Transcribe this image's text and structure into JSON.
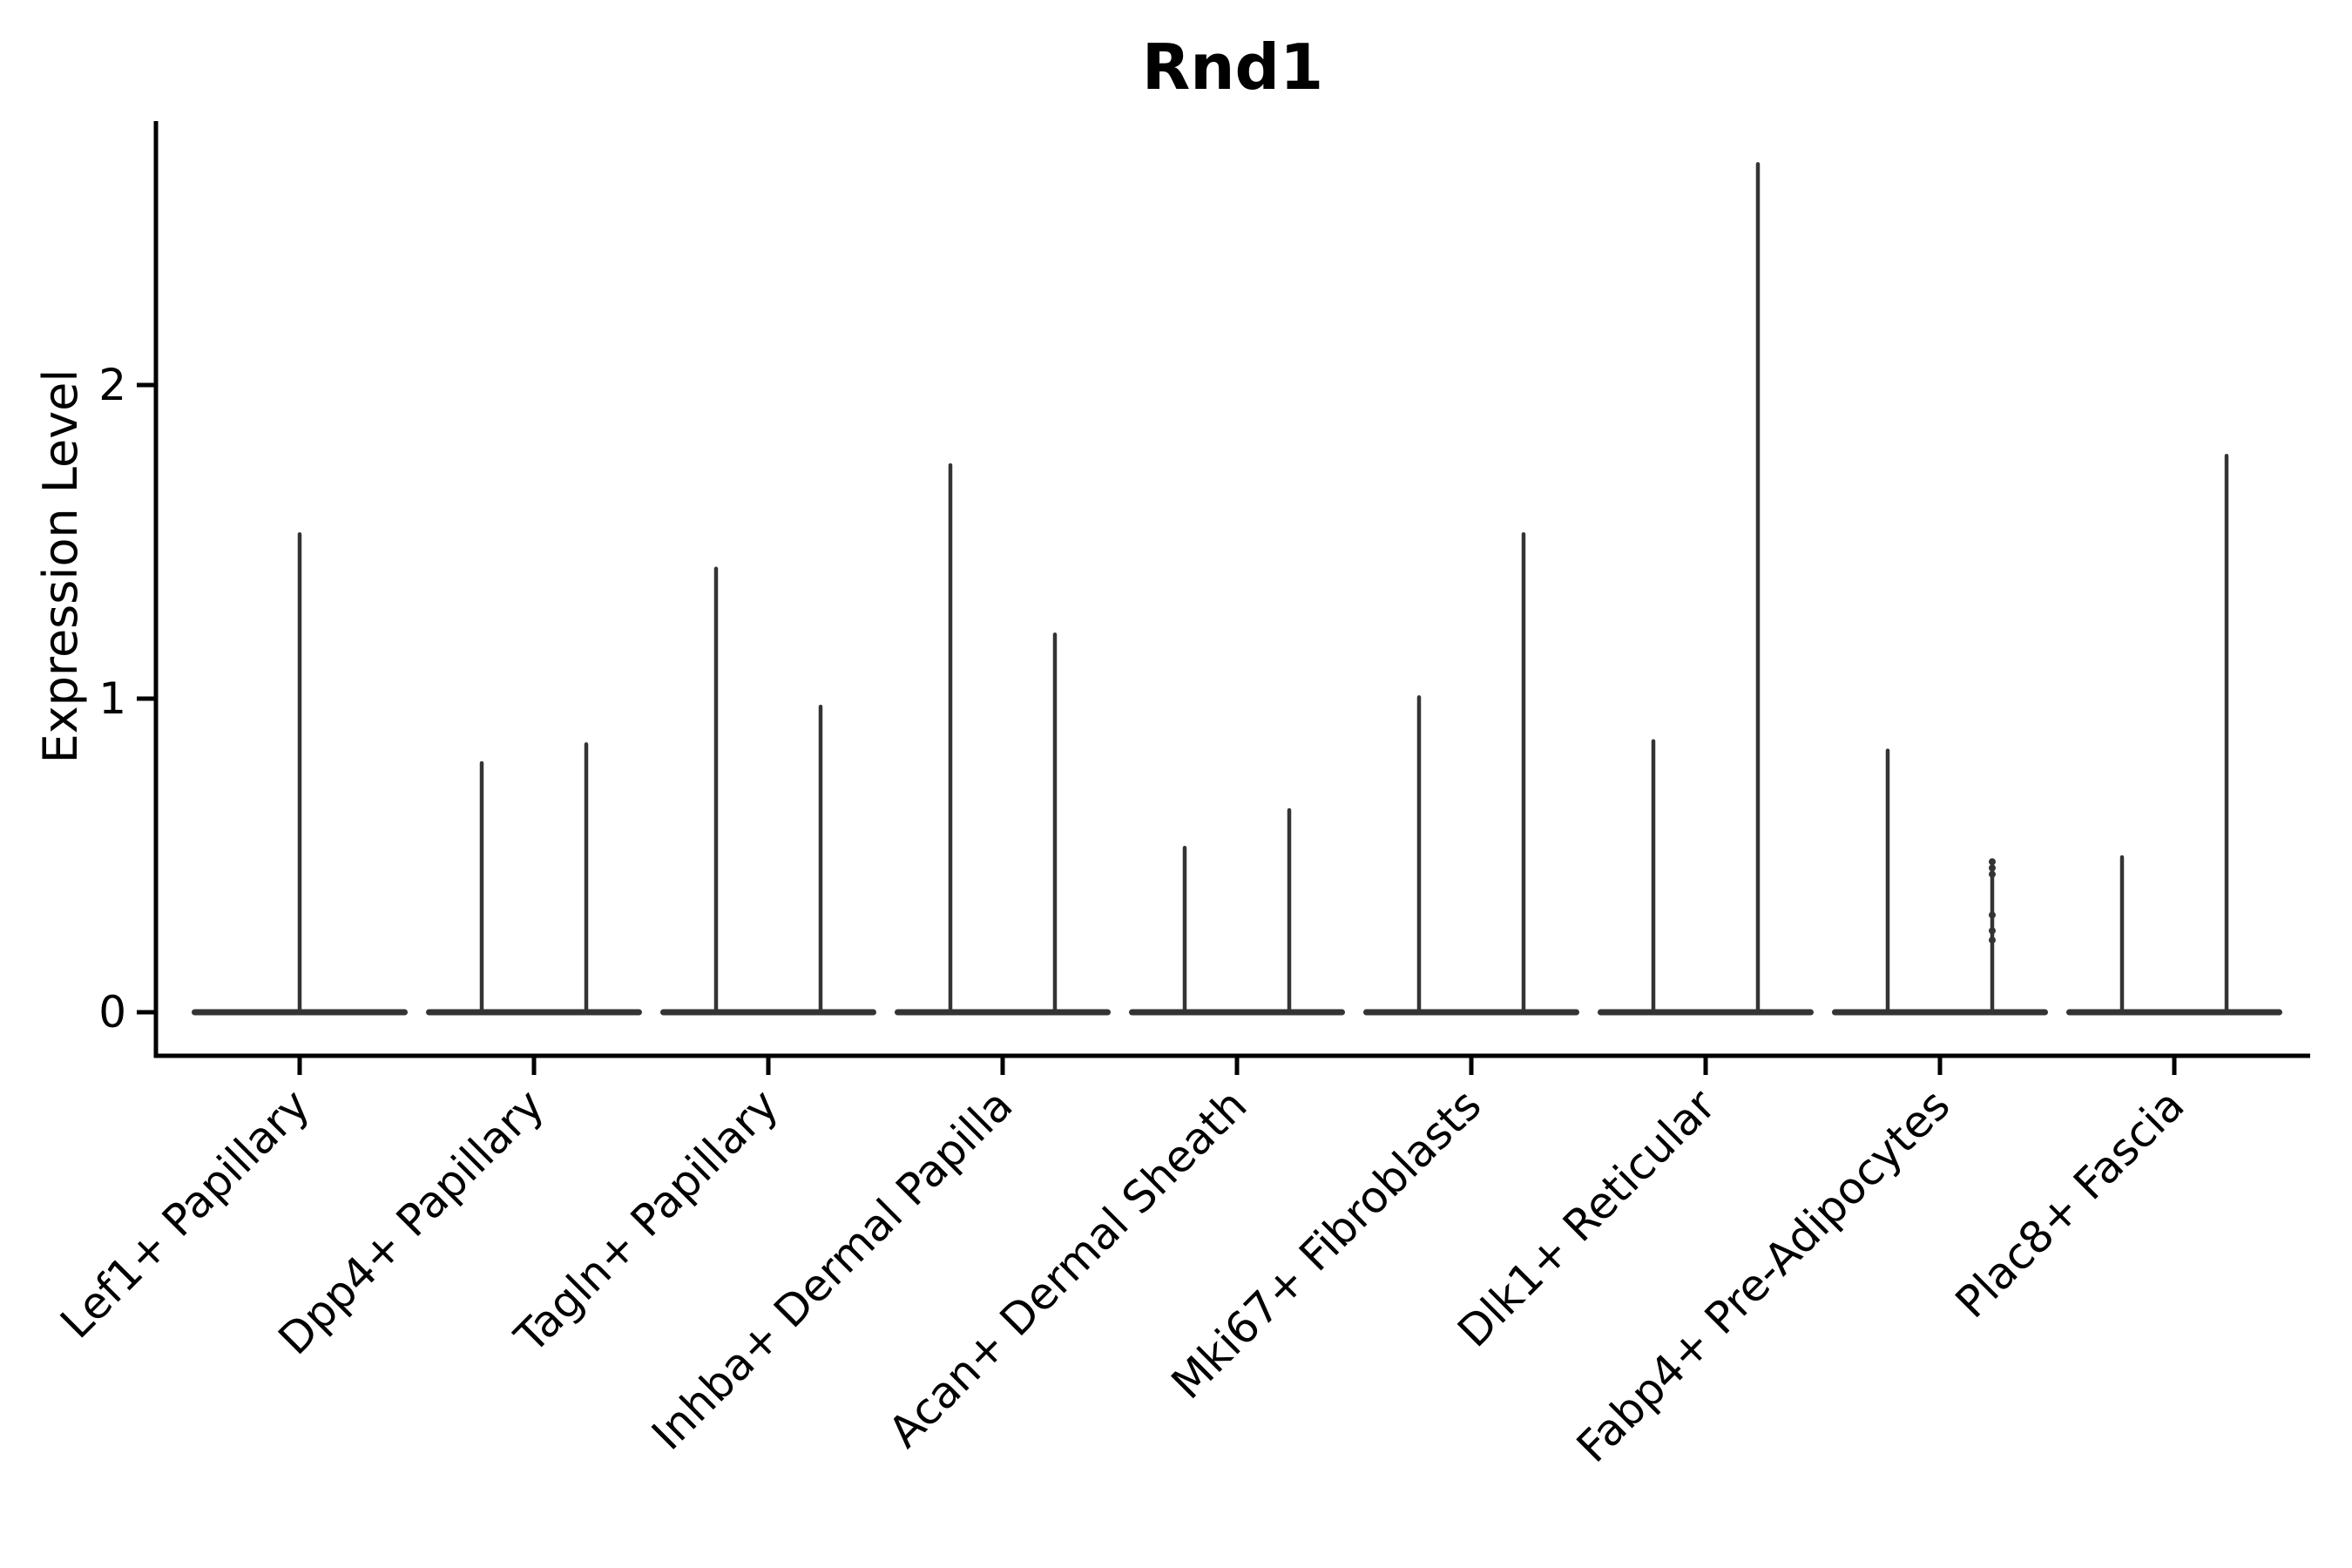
{
  "title": "Rnd1",
  "colors": {
    "violin": "#343434",
    "axis": "#000000",
    "text": "#000000",
    "background": "#ffffff"
  },
  "chart_data": {
    "type": "violin",
    "title": "Rnd1",
    "xlabel": "",
    "ylabel": "Expression Level",
    "yticks": [
      0,
      1,
      2
    ],
    "ylim": [
      -0.14,
      2.84
    ],
    "grid": false,
    "legend": "none",
    "categories": [
      "Lef1+ Papillary",
      "Dpp4+ Papillary",
      "Tagln+ Papillary",
      "Inhba+ Dermal Papilla",
      "Acan+ Dermal Sheath",
      "Mki67+ Fibroblasts",
      "Dlk1+ Reticular",
      "Fabp4+ Pre-Adipocytes",
      "Plac8+ Fascia"
    ],
    "description": "Violin plot of Rnd1 expression; each category shows flat zero-inflated violin bodies at 0 with thin vertical tails up to the max expression. Most categories contain two side-by-side violins; the first has a single centered violin.",
    "violins": [
      {
        "category": "Lef1+ Papillary",
        "spikes": [
          {
            "side": "center",
            "max": 1.53
          }
        ]
      },
      {
        "category": "Dpp4+ Papillary",
        "spikes": [
          {
            "side": "left",
            "max": 0.8
          },
          {
            "side": "right",
            "max": 0.86
          }
        ]
      },
      {
        "category": "Tagln+ Papillary",
        "spikes": [
          {
            "side": "left",
            "max": 1.42
          },
          {
            "side": "right",
            "max": 0.98
          }
        ]
      },
      {
        "category": "Inhba+ Dermal Papilla",
        "spikes": [
          {
            "side": "left",
            "max": 1.75
          },
          {
            "side": "right",
            "max": 1.21
          }
        ]
      },
      {
        "category": "Acan+ Dermal Sheath",
        "spikes": [
          {
            "side": "left",
            "max": 0.53
          },
          {
            "side": "right",
            "max": 0.65
          }
        ]
      },
      {
        "category": "Mki67+ Fibroblasts",
        "spikes": [
          {
            "side": "left",
            "max": 1.01
          },
          {
            "side": "right",
            "max": 1.53
          }
        ]
      },
      {
        "category": "Dlk1+ Reticular",
        "spikes": [
          {
            "side": "left",
            "max": 0.87
          },
          {
            "side": "right",
            "max": 2.71
          }
        ]
      },
      {
        "category": "Fabp4+ Pre-Adipocytes",
        "spikes": [
          {
            "side": "left",
            "max": 0.84
          },
          {
            "side": "right",
            "max": 0.48,
            "points": [
              0.48,
              0.46,
              0.44,
              0.31,
              0.26,
              0.23
            ]
          }
        ]
      },
      {
        "category": "Plac8+ Fascia",
        "spikes": [
          {
            "side": "left",
            "max": 0.5
          },
          {
            "side": "right",
            "max": 1.78
          }
        ]
      }
    ]
  }
}
